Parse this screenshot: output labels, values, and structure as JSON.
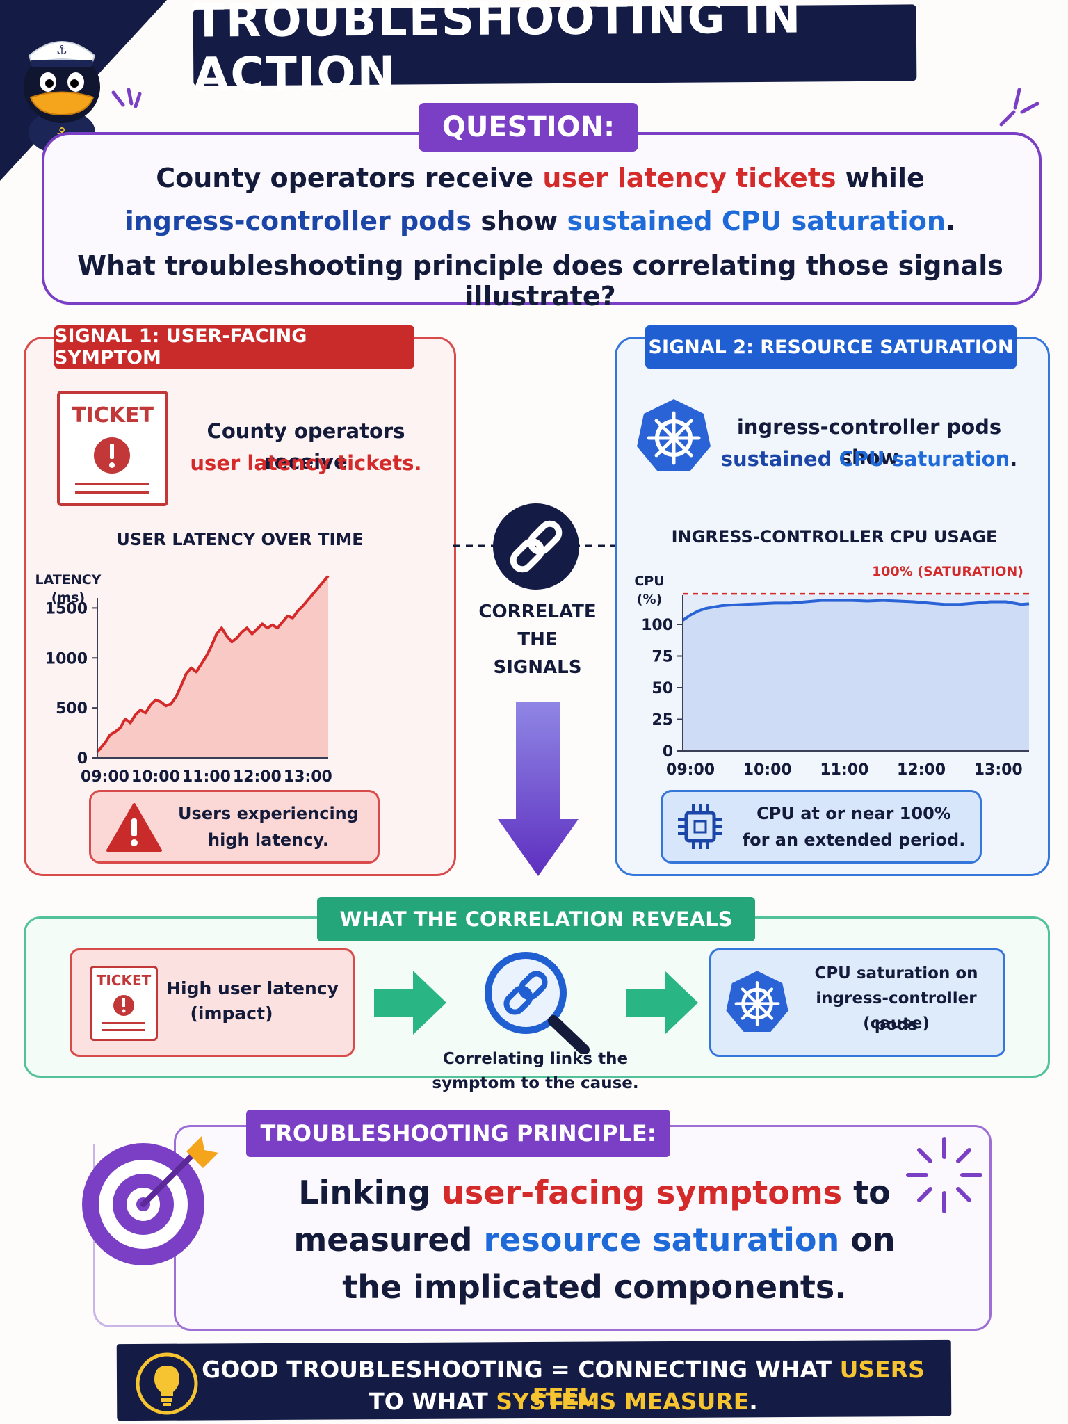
{
  "title": "TROUBLESHOOTING IN ACTION",
  "question": {
    "label": "QUESTION:",
    "line1": [
      "County operators receive ",
      "user latency tickets",
      " while"
    ],
    "line2": [
      "ingress-controller pods",
      " show ",
      "sustained CPU saturation",
      "."
    ],
    "line3": "What troubleshooting principle does correlating those signals illustrate?"
  },
  "signal1": {
    "label": "SIGNAL 1: USER-FACING SYMPTOM",
    "ticket_word": "TICKET",
    "text_a": "County operators receive",
    "text_b": "user latency tickets.",
    "chart_title": "USER LATENCY OVER TIME",
    "ylabel_1": "LATENCY",
    "ylabel_2": "(ms)",
    "box_line1": "Users experiencing",
    "box_line2": "high latency."
  },
  "signal2": {
    "label": "SIGNAL 2: RESOURCE SATURATION",
    "text_a": "ingress-controller pods show",
    "text_b1": "sustained ",
    "text_b2": "CPU saturation",
    "text_b3": ".",
    "chart_title": "INGRESS-CONTROLLER CPU USAGE",
    "ylabel_1": "CPU",
    "ylabel_2": "(%)",
    "saturation_label": "100% (SATURATION)",
    "box_line1": "CPU at or near 100%",
    "box_line2": "for an extended period."
  },
  "correlate": {
    "line1": "CORRELATE",
    "line2": "THE",
    "line3": "SIGNALS"
  },
  "reveals": {
    "label": "WHAT THE CORRELATION REVEALS",
    "ticket_word": "TICKET",
    "impact_line1": "High user latency",
    "impact_line2": "(impact)",
    "caption_line1": "Correlating links the",
    "caption_line2": "symptom to the cause.",
    "cause_line1": "CPU saturation on",
    "cause_line2": "ingress-controller pods",
    "cause_line3": "(cause)"
  },
  "principle": {
    "label": "TROUBLESHOOTING PRINCIPLE:",
    "line1": [
      "Linking ",
      "user-facing symptoms",
      " to"
    ],
    "line2": [
      "measured ",
      "resource saturation",
      " on"
    ],
    "line3": "the implicated components."
  },
  "footer": {
    "line1": [
      "GOOD TROUBLESHOOTING = CONNECTING WHAT ",
      "USERS FEEL"
    ],
    "line2": [
      "TO WHAT ",
      "SYSTEMS MEASURE",
      "."
    ]
  },
  "colors": {
    "navy": "#141c46",
    "red": "#d42a2a",
    "blue": "#1e6ad8",
    "purple": "#7a3fc4",
    "green": "#25a57a",
    "gold": "#f6c430"
  },
  "icons": [
    "duck-mascot-icon",
    "ticket-icon",
    "kubernetes-helm-icon",
    "chain-link-icon",
    "warning-icon",
    "cpu-chip-icon",
    "magnifier-link-icon",
    "target-arrow-icon",
    "lightbulb-icon"
  ],
  "chart_data": [
    {
      "type": "area",
      "title": "USER LATENCY OVER TIME",
      "ylabel": "LATENCY (ms)",
      "xlabel": "",
      "x_ticks": [
        "09:00",
        "10:00",
        "11:00",
        "12:00",
        "13:00"
      ],
      "y_ticks": [
        0,
        500,
        1000,
        1500
      ],
      "ylim": [
        0,
        1600
      ],
      "xlim": [
        8.85,
        13.4
      ],
      "x": [
        8.85,
        9.0,
        9.1,
        9.2,
        9.3,
        9.4,
        9.5,
        9.6,
        9.7,
        9.8,
        9.9,
        10.0,
        10.1,
        10.2,
        10.3,
        10.4,
        10.5,
        10.6,
        10.7,
        10.8,
        10.9,
        11.0,
        11.1,
        11.2,
        11.3,
        11.4,
        11.5,
        11.6,
        11.7,
        11.8,
        11.9,
        12.0,
        12.1,
        12.2,
        12.3,
        12.4,
        12.5,
        12.6,
        12.7,
        12.8,
        12.9,
        13.0,
        13.1,
        13.2,
        13.3,
        13.4
      ],
      "values": [
        60,
        150,
        230,
        260,
        300,
        390,
        350,
        430,
        480,
        450,
        530,
        580,
        560,
        520,
        540,
        610,
        720,
        840,
        900,
        860,
        940,
        1020,
        1120,
        1240,
        1300,
        1220,
        1160,
        1200,
        1260,
        1300,
        1240,
        1290,
        1340,
        1300,
        1330,
        1300,
        1360,
        1420,
        1400,
        1470,
        1520,
        1580,
        1640,
        1700,
        1760,
        1820
      ],
      "color": "#d42a2a",
      "grid": false
    },
    {
      "type": "area",
      "title": "INGRESS-CONTROLLER CPU USAGE",
      "ylabel": "CPU (%)",
      "xlabel": "",
      "x_ticks": [
        "09:00",
        "10:00",
        "11:00",
        "12:00",
        "13:00"
      ],
      "y_ticks": [
        0,
        25,
        50,
        75,
        100
      ],
      "ylim": [
        0,
        118
      ],
      "xlim": [
        8.9,
        13.4
      ],
      "x": [
        8.9,
        9.0,
        9.1,
        9.2,
        9.3,
        9.4,
        9.5,
        9.7,
        9.9,
        10.1,
        10.3,
        10.5,
        10.7,
        10.9,
        11.1,
        11.3,
        11.5,
        11.7,
        11.9,
        12.1,
        12.3,
        12.5,
        12.7,
        12.9,
        13.1,
        13.3,
        13.4
      ],
      "values": [
        99,
        103,
        106,
        108,
        109,
        110,
        110.5,
        111,
        111.5,
        112,
        112,
        113,
        114,
        114,
        114,
        113.5,
        114,
        113.5,
        113,
        112,
        111,
        111,
        112,
        113,
        113,
        111,
        111.5
      ],
      "saturation_line": 100,
      "saturation_label": "100% (SATURATION)",
      "color": "#2a63d6",
      "grid": false
    }
  ]
}
